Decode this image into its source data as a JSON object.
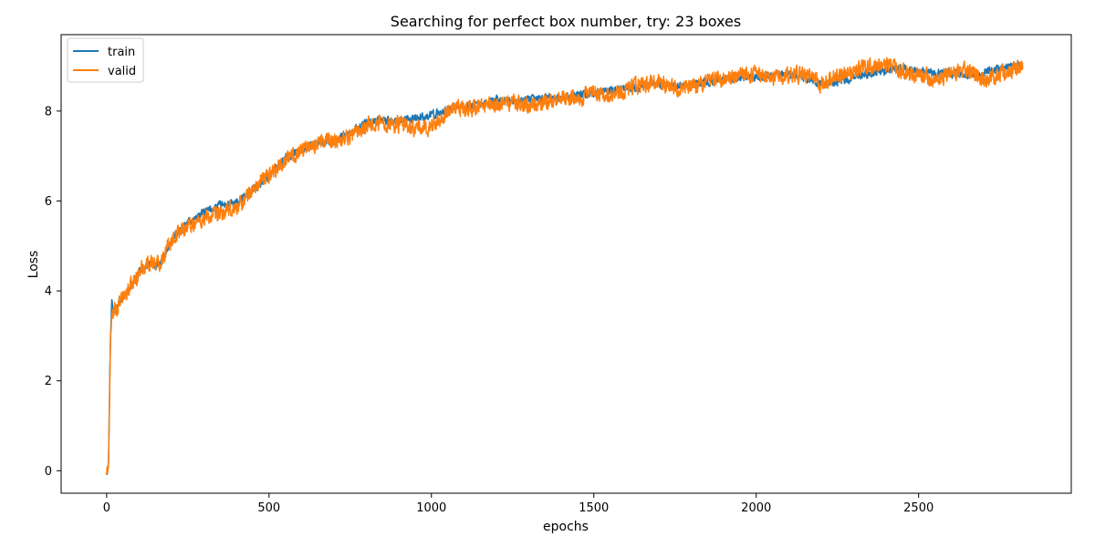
{
  "chart_data": {
    "type": "line",
    "title": "Searching for perfect box number, try: 23 boxes",
    "xlabel": "epochs",
    "ylabel": "Loss",
    "xlim": [
      -140,
      2970
    ],
    "ylim": [
      -0.5,
      9.7
    ],
    "xticks": [
      0,
      500,
      1000,
      1500,
      2000,
      2500
    ],
    "yticks": [
      0,
      2,
      4,
      6,
      8
    ],
    "x_tick_labels": [
      "0",
      "500",
      "1000",
      "1500",
      "2000",
      "2500"
    ],
    "y_tick_labels": [
      "0",
      "2",
      "4",
      "6",
      "8"
    ],
    "grid": false,
    "legend_position": "upper-left",
    "series": [
      {
        "name": "train",
        "color": "#1f77b4",
        "noise": 0.08,
        "x": [
          0,
          3,
          6,
          8,
          10,
          12,
          14,
          16,
          18,
          20,
          25,
          30,
          40,
          50,
          60,
          70,
          80,
          100,
          120,
          140,
          160,
          180,
          200,
          220,
          250,
          300,
          350,
          400,
          450,
          500,
          550,
          600,
          650,
          700,
          750,
          800,
          850,
          900,
          950,
          1000,
          1050,
          1100,
          1150,
          1200,
          1250,
          1300,
          1350,
          1400,
          1450,
          1500,
          1550,
          1600,
          1650,
          1700,
          1750,
          1800,
          1850,
          1900,
          1950,
          2000,
          2050,
          2100,
          2150,
          2200,
          2250,
          2300,
          2350,
          2400,
          2450,
          2500,
          2550,
          2600,
          2650,
          2700,
          2750,
          2800,
          2820
        ],
        "y": [
          -0.05,
          0.0,
          0.3,
          1.2,
          2.2,
          3.0,
          3.4,
          3.8,
          3.7,
          3.55,
          3.6,
          3.65,
          3.75,
          3.85,
          3.95,
          4.05,
          4.15,
          4.4,
          4.55,
          4.6,
          4.55,
          4.8,
          5.1,
          5.3,
          5.5,
          5.75,
          5.9,
          5.95,
          6.25,
          6.55,
          6.95,
          7.15,
          7.3,
          7.35,
          7.5,
          7.75,
          7.8,
          7.75,
          7.85,
          7.9,
          8.05,
          8.1,
          8.15,
          8.25,
          8.2,
          8.25,
          8.3,
          8.3,
          8.35,
          8.4,
          8.45,
          8.5,
          8.55,
          8.6,
          8.55,
          8.6,
          8.65,
          8.7,
          8.75,
          8.75,
          8.8,
          8.8,
          8.75,
          8.6,
          8.65,
          8.75,
          8.85,
          8.9,
          8.95,
          8.9,
          8.85,
          8.85,
          8.8,
          8.85,
          8.95,
          9.0,
          9.0
        ]
      },
      {
        "name": "valid",
        "color": "#ff7f0e",
        "noise": 0.16,
        "x": [
          0,
          3,
          6,
          8,
          10,
          12,
          14,
          16,
          18,
          20,
          25,
          30,
          40,
          50,
          60,
          70,
          80,
          100,
          120,
          140,
          160,
          180,
          200,
          220,
          250,
          300,
          350,
          400,
          450,
          500,
          550,
          600,
          650,
          700,
          750,
          800,
          850,
          900,
          950,
          1000,
          1050,
          1100,
          1150,
          1200,
          1250,
          1300,
          1350,
          1400,
          1450,
          1500,
          1550,
          1600,
          1650,
          1700,
          1750,
          1800,
          1850,
          1900,
          1950,
          2000,
          2050,
          2100,
          2150,
          2200,
          2250,
          2300,
          2350,
          2400,
          2450,
          2500,
          2550,
          2600,
          2650,
          2700,
          2750,
          2800,
          2820
        ],
        "y": [
          -0.05,
          0.0,
          0.2,
          1.0,
          2.0,
          2.8,
          3.2,
          3.4,
          3.5,
          3.5,
          3.55,
          3.6,
          3.7,
          3.85,
          3.95,
          4.05,
          4.15,
          4.4,
          4.6,
          4.65,
          4.6,
          4.85,
          5.15,
          5.3,
          5.45,
          5.6,
          5.7,
          5.85,
          6.25,
          6.6,
          6.9,
          7.15,
          7.3,
          7.35,
          7.45,
          7.7,
          7.75,
          7.7,
          7.6,
          7.65,
          8.0,
          8.05,
          8.1,
          8.15,
          8.2,
          8.1,
          8.2,
          8.3,
          8.3,
          8.4,
          8.4,
          8.45,
          8.6,
          8.65,
          8.5,
          8.55,
          8.65,
          8.75,
          8.8,
          8.8,
          8.75,
          8.8,
          8.8,
          8.6,
          8.8,
          8.9,
          9.0,
          9.05,
          8.9,
          8.8,
          8.7,
          8.85,
          8.95,
          8.7,
          8.8,
          8.95,
          8.95
        ]
      }
    ]
  }
}
